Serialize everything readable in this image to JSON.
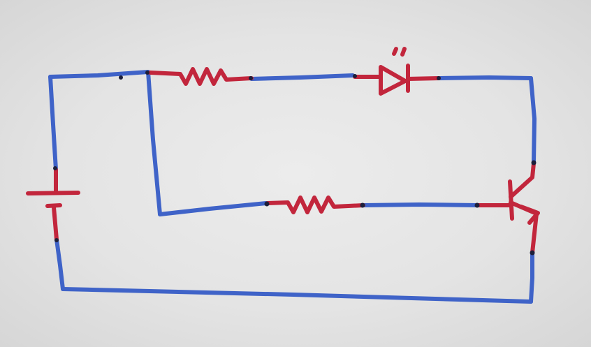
{
  "colors": {
    "wire": "#3f63c8",
    "component": "#c2263c",
    "junction": "#1d1f3a",
    "paper": "#e6e6e6"
  },
  "components": [
    {
      "id": "battery",
      "type": "battery"
    },
    {
      "id": "resistor-top",
      "type": "resistor"
    },
    {
      "id": "led",
      "type": "light-emitting-diode"
    },
    {
      "id": "resistor-bottom",
      "type": "resistor"
    },
    {
      "id": "transistor",
      "type": "npn-transistor"
    }
  ]
}
